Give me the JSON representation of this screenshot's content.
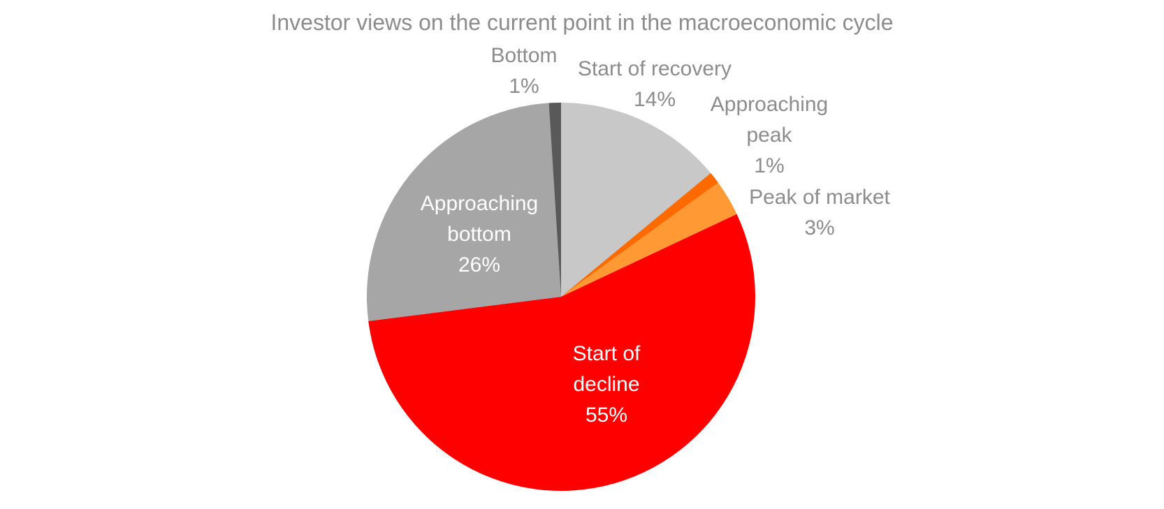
{
  "chart_data": {
    "type": "pie",
    "title": "Investor views on the current point in the macroeconomic cycle",
    "start_angle_deg": 0,
    "direction": "clockwise",
    "slices": [
      {
        "label_lines": [
          "Start of recovery"
        ],
        "pct_label": "14%",
        "value": 14,
        "color": "#c8c8c8",
        "label_color": "#8c8c8c",
        "label_position": "outside"
      },
      {
        "label_lines": [
          "Approaching",
          "peak"
        ],
        "pct_label": "1%",
        "value": 1,
        "color": "#ff6a00",
        "label_color": "#8c8c8c",
        "label_position": "outside"
      },
      {
        "label_lines": [
          "Peak of market"
        ],
        "pct_label": "3%",
        "value": 3,
        "color": "#ff9933",
        "label_color": "#8c8c8c",
        "label_position": "outside"
      },
      {
        "label_lines": [
          "Start of",
          "decline"
        ],
        "pct_label": "55%",
        "value": 55,
        "color": "#ff0000",
        "label_color": "#ffffff",
        "label_position": "inside"
      },
      {
        "label_lines": [
          "Approaching",
          "bottom"
        ],
        "pct_label": "26%",
        "value": 26,
        "color": "#a6a6a6",
        "label_color": "#ffffff",
        "label_position": "inside"
      },
      {
        "label_lines": [
          "Bottom"
        ],
        "pct_label": "1%",
        "value": 1,
        "color": "#595959",
        "label_color": "#8c8c8c",
        "label_position": "outside"
      }
    ]
  }
}
